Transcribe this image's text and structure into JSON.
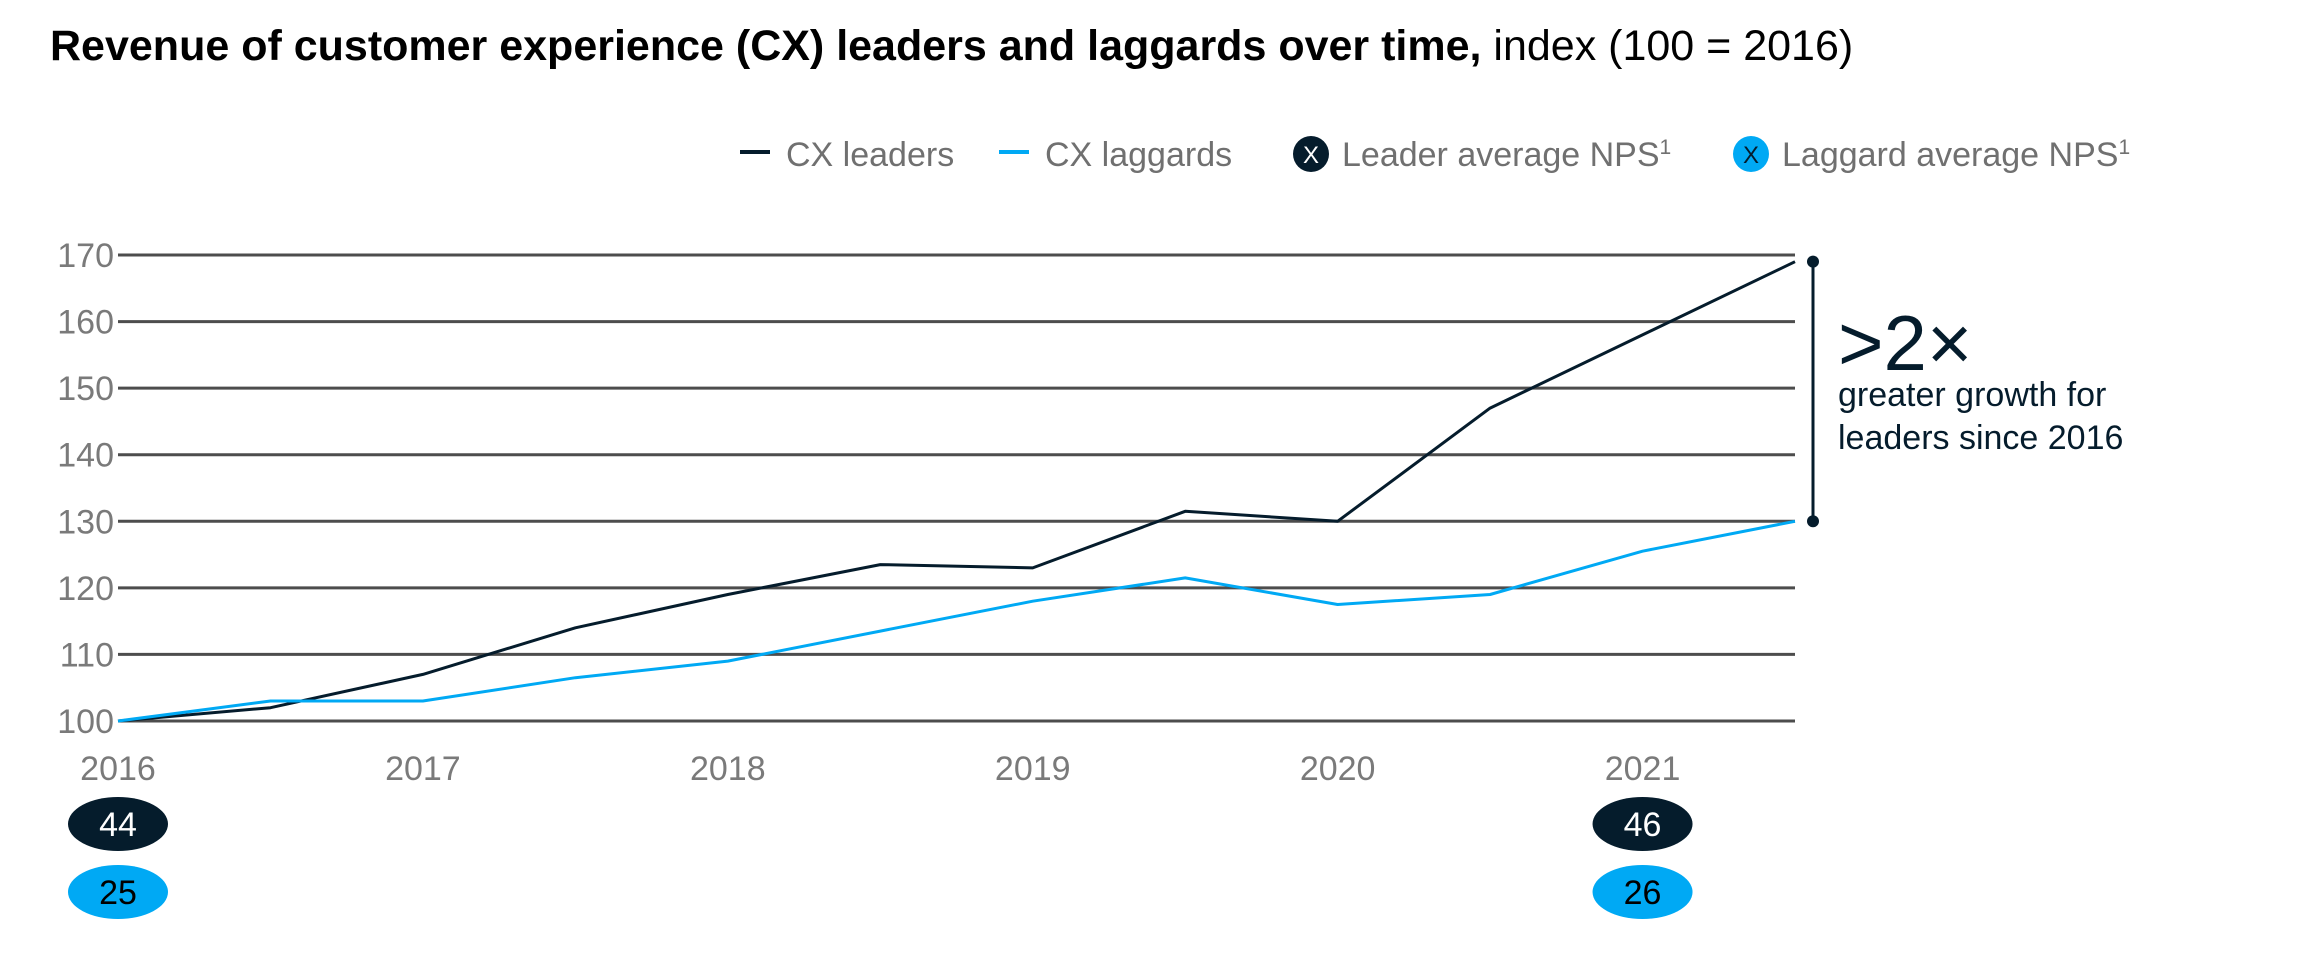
{
  "title_bold": "Revenue of customer experience (CX) leaders and laggards over time,",
  "title_rest": " index (100 = 2016)",
  "colors": {
    "leaders": "#051c2c",
    "laggards": "#00a9f4",
    "grid": "#4d4d4d"
  },
  "legend": [
    {
      "label": "CX leaders",
      "type": "line",
      "series": "leaders"
    },
    {
      "label": "CX laggards",
      "type": "line",
      "series": "laggards"
    },
    {
      "label": "Leader average NPS",
      "sup": "1",
      "type": "marker",
      "marker_text": "X",
      "series": "leaders"
    },
    {
      "label": "Laggard average NPS",
      "sup": "1",
      "type": "marker",
      "marker_text": "X",
      "series": "laggards"
    }
  ],
  "annotation": {
    "big": ">2×",
    "line1": "greater growth for",
    "line2": "leaders since 2016"
  },
  "chart_data": {
    "type": "line",
    "title": "Revenue of customer experience (CX) leaders and laggards over time, index (100 = 2016)",
    "x": [
      2016.0,
      2016.5,
      2017.0,
      2017.5,
      2018.0,
      2018.5,
      2019.0,
      2019.5,
      2020.0,
      2020.5,
      2021.0,
      2021.5
    ],
    "xlim": [
      2016.0,
      2021.5
    ],
    "x_ticks": [
      "2016",
      "2017",
      "2018",
      "2019",
      "2020",
      "2021"
    ],
    "ylim": [
      100,
      170
    ],
    "y_ticks": [
      100,
      110,
      120,
      130,
      140,
      150,
      160,
      170
    ],
    "grid": true,
    "legend_position": "top-right",
    "series": [
      {
        "name": "CX leaders",
        "key": "leaders",
        "values": [
          100,
          102,
          107,
          114,
          119,
          123.5,
          123,
          131.5,
          130,
          147,
          158,
          169
        ]
      },
      {
        "name": "CX laggards",
        "key": "laggards",
        "values": [
          100,
          103,
          103,
          106.5,
          109,
          113.5,
          118,
          121.5,
          117.5,
          119,
          125.5,
          130
        ]
      }
    ],
    "nps_badges": [
      {
        "year": "2016",
        "leaders": "44",
        "laggards": "25"
      },
      {
        "year": "2021",
        "leaders": "46",
        "laggards": "26"
      }
    ]
  }
}
